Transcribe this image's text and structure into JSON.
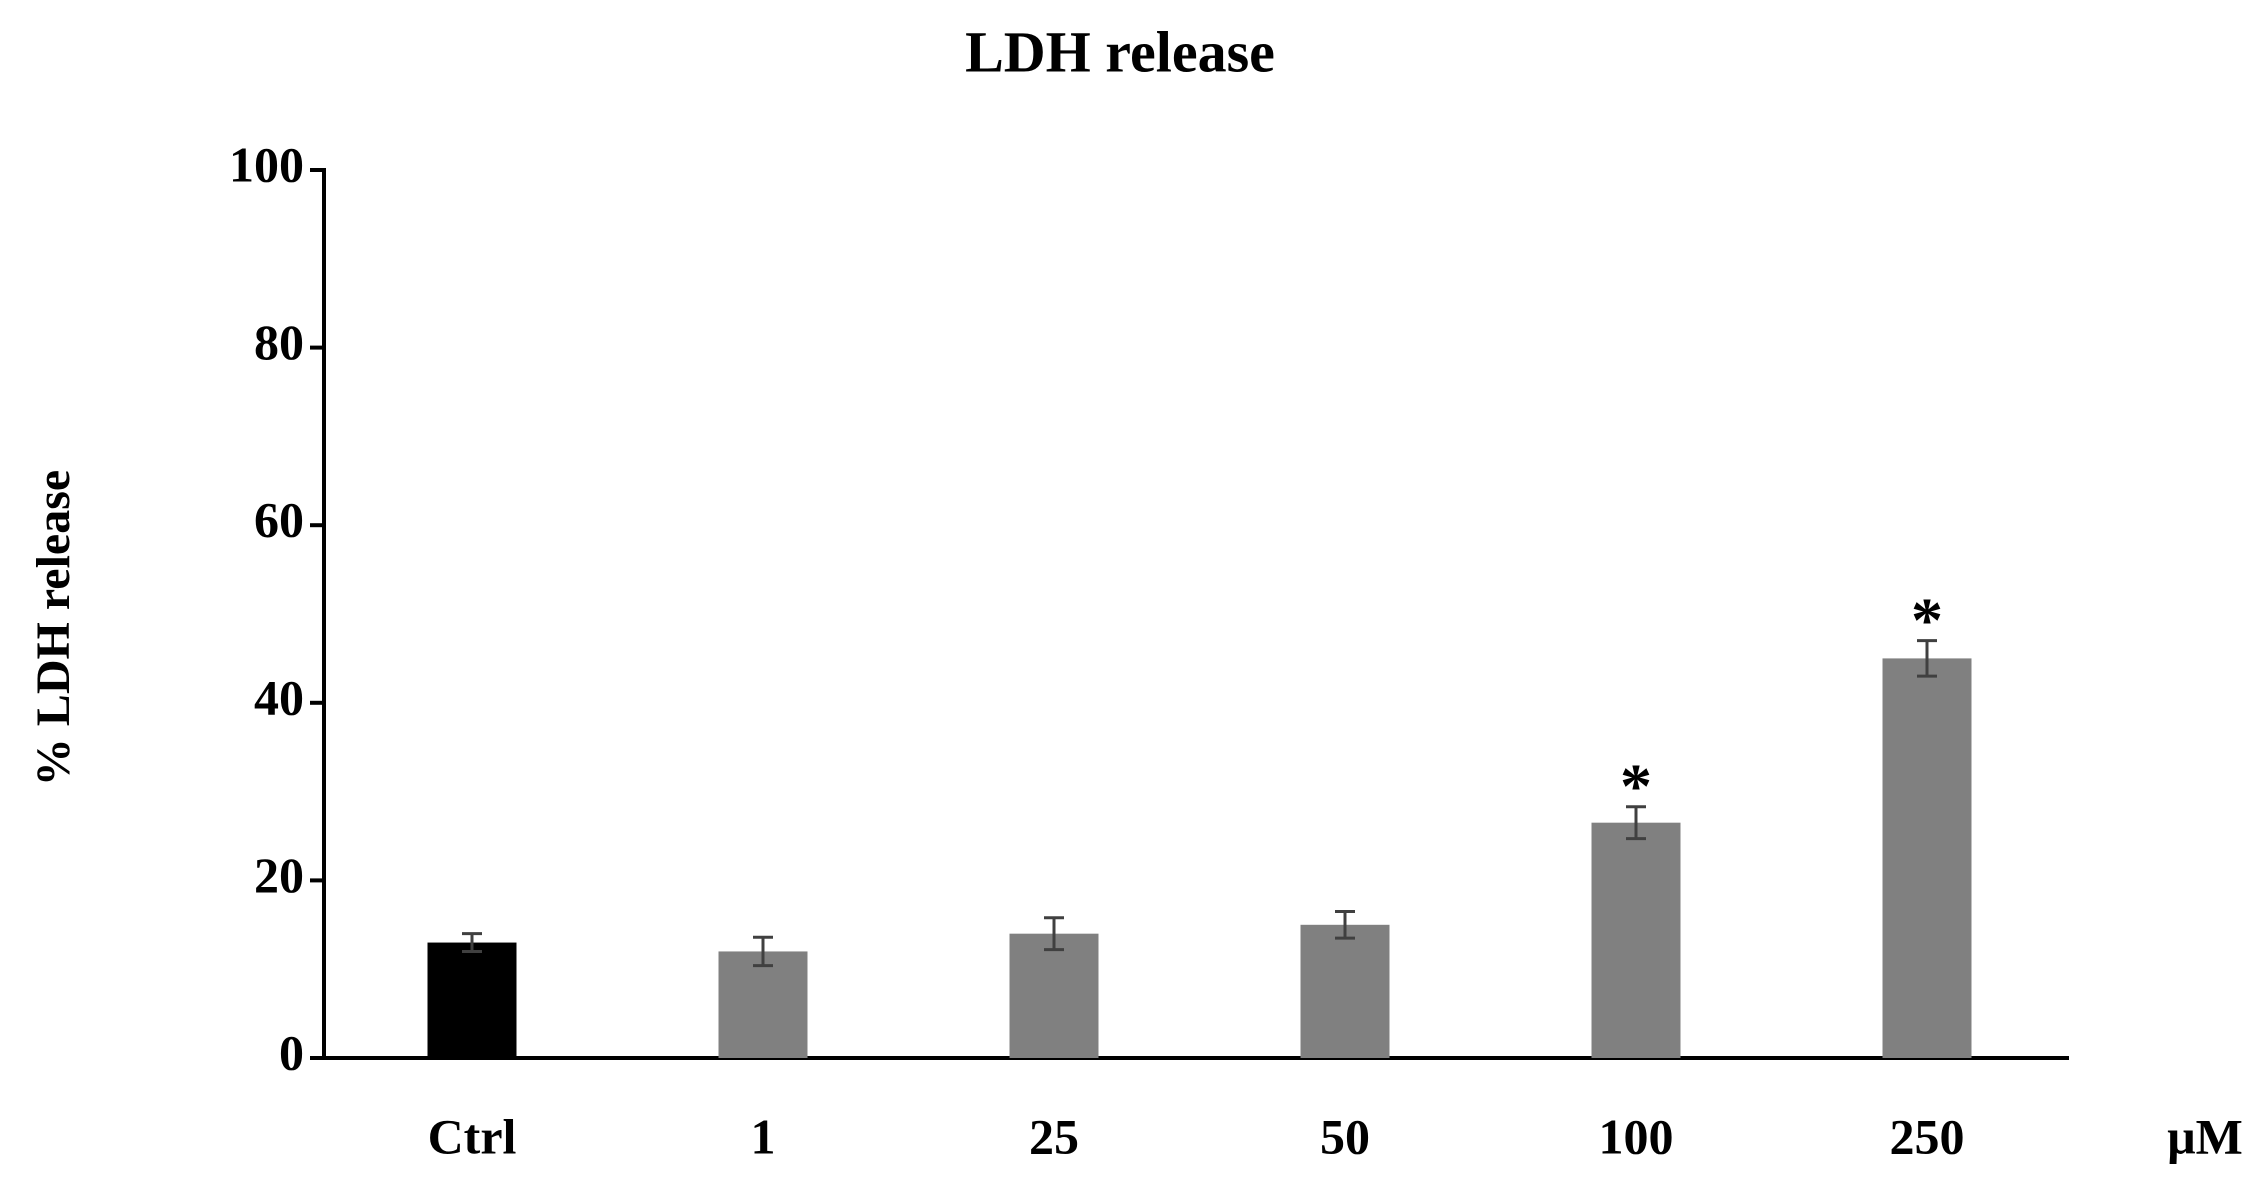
{
  "chart_data": {
    "type": "bar",
    "title": "LDH release",
    "ylabel": "% LDH release",
    "xlabel": "μM",
    "categories": [
      "Ctrl",
      "1",
      "25",
      "50",
      "100",
      "250"
    ],
    "values": [
      13,
      12,
      14,
      15,
      26.5,
      45
    ],
    "errors": [
      1,
      1.6,
      1.8,
      1.5,
      1.8,
      2
    ],
    "colors": [
      "#000000",
      "#808080",
      "#808080",
      "#808080",
      "#808080",
      "#808080"
    ],
    "significance": [
      null,
      null,
      null,
      null,
      "*",
      "*"
    ],
    "ylim": [
      0,
      100
    ],
    "yticks": [
      0,
      20,
      40,
      60,
      80,
      100
    ],
    "grid": false
  }
}
